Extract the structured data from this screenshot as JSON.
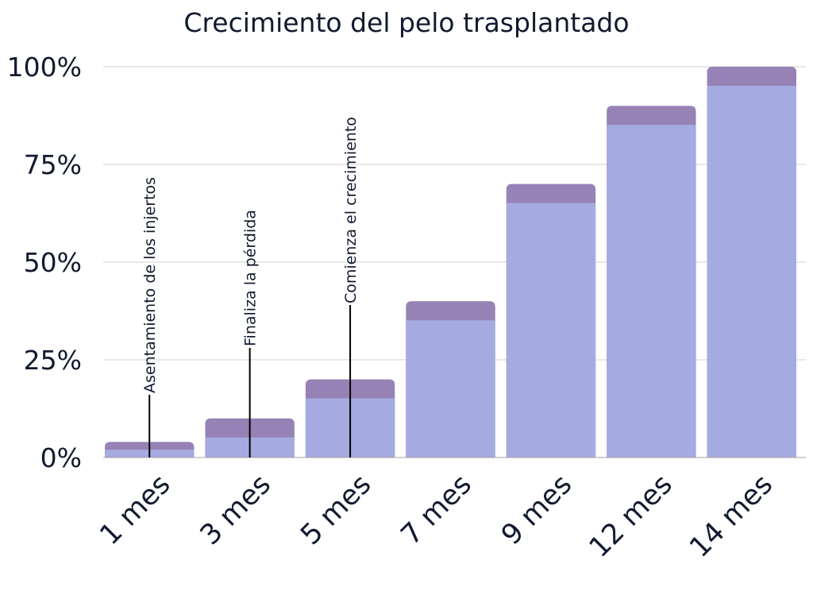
{
  "chart_data": {
    "type": "bar",
    "title": "Crecimiento del pelo trasplantado",
    "xlabel": "",
    "ylabel": "",
    "categories": [
      "1 mes",
      "3 mes",
      "5 mes",
      "7 mes",
      "9 mes",
      "12 mes",
      "14 mes"
    ],
    "values": [
      4,
      10,
      20,
      40,
      70,
      90,
      100
    ],
    "ylim": [
      0,
      100
    ],
    "yticks": [
      0,
      25,
      50,
      75,
      100
    ],
    "ytick_labels": [
      "0%",
      "25%",
      "50%",
      "75%",
      "100%"
    ],
    "grid": true,
    "legend": "none",
    "colors": {
      "bar_body": "#a5abe1",
      "bar_cap": "#9782b5",
      "text": "#111a2e"
    },
    "annotations": [
      {
        "text": "Asentamiento de los injertos",
        "category": "1 mes"
      },
      {
        "text": "Finaliza la pérdida",
        "category": "3 mes"
      },
      {
        "text": "Comienza el crecimiento",
        "category": "5 mes"
      }
    ]
  }
}
